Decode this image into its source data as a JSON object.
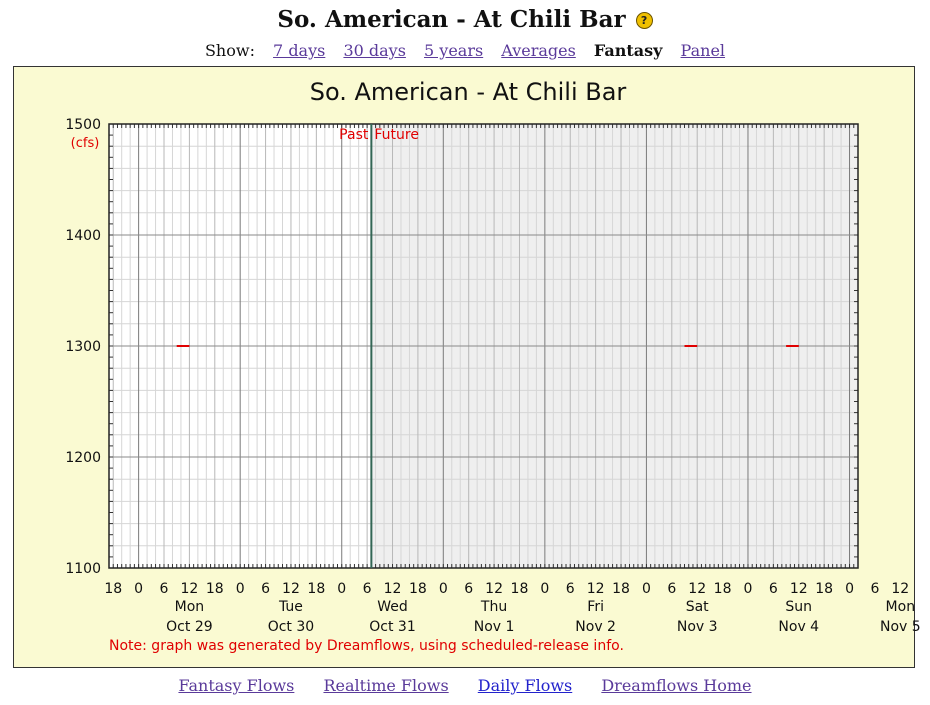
{
  "page": {
    "title": "So. American - At Chili Bar",
    "help_icon": "question-circle-icon"
  },
  "nav": {
    "show_label": "Show:",
    "items": [
      {
        "label": "7 days",
        "active": false
      },
      {
        "label": "30 days",
        "active": false
      },
      {
        "label": "5 years",
        "active": false
      },
      {
        "label": "Averages",
        "active": false
      },
      {
        "label": "Fantasy",
        "active": true
      },
      {
        "label": "Panel",
        "active": false
      }
    ]
  },
  "footer": {
    "links": [
      {
        "label": "Fantasy Flows"
      },
      {
        "label": "Realtime Flows"
      },
      {
        "label": "Daily Flows"
      },
      {
        "label": "Dreamflows Home"
      }
    ]
  },
  "colors": {
    "panel_bg": "#fafad2",
    "future_bg": "#efefef",
    "data_line": "#e00000",
    "now_line": "#336655",
    "annotation": "#e00000"
  },
  "chart_data": {
    "type": "line",
    "title": "So. American - At Chili Bar",
    "ylabel": "(cfs)",
    "ylim": [
      1100,
      1500
    ],
    "yticks": [
      1100,
      1200,
      1300,
      1400,
      1500
    ],
    "x_unit": "hours since Oct 29 00:00",
    "xlim": [
      -7,
      170
    ],
    "now_x": 55,
    "hour_ticks": [
      {
        "x": -6,
        "label": "18"
      },
      {
        "x": 0,
        "label": "0"
      },
      {
        "x": 6,
        "label": "6"
      },
      {
        "x": 12,
        "label": "12"
      },
      {
        "x": 18,
        "label": "18"
      },
      {
        "x": 24,
        "label": "0"
      },
      {
        "x": 30,
        "label": "6"
      },
      {
        "x": 36,
        "label": "12"
      },
      {
        "x": 42,
        "label": "18"
      },
      {
        "x": 48,
        "label": "0"
      },
      {
        "x": 54,
        "label": "6"
      },
      {
        "x": 60,
        "label": "12"
      },
      {
        "x": 66,
        "label": "18"
      },
      {
        "x": 72,
        "label": "0"
      },
      {
        "x": 78,
        "label": "6"
      },
      {
        "x": 84,
        "label": "12"
      },
      {
        "x": 90,
        "label": "18"
      },
      {
        "x": 96,
        "label": "0"
      },
      {
        "x": 102,
        "label": "6"
      },
      {
        "x": 108,
        "label": "12"
      },
      {
        "x": 114,
        "label": "18"
      },
      {
        "x": 120,
        "label": "0"
      },
      {
        "x": 126,
        "label": "6"
      },
      {
        "x": 132,
        "label": "12"
      },
      {
        "x": 138,
        "label": "18"
      },
      {
        "x": 144,
        "label": "0"
      },
      {
        "x": 150,
        "label": "6"
      },
      {
        "x": 156,
        "label": "12"
      },
      {
        "x": 162,
        "label": "18"
      },
      {
        "x": 168,
        "label": "0"
      },
      {
        "x": 174,
        "label": "6"
      },
      {
        "x": 180,
        "label": "12"
      }
    ],
    "days": [
      {
        "x": 12,
        "weekday": "Mon",
        "date": "Oct 29"
      },
      {
        "x": 36,
        "weekday": "Tue",
        "date": "Oct 30"
      },
      {
        "x": 60,
        "weekday": "Wed",
        "date": "Oct 31"
      },
      {
        "x": 84,
        "weekday": "Thu",
        "date": "Nov 1"
      },
      {
        "x": 108,
        "weekday": "Fri",
        "date": "Nov 2"
      },
      {
        "x": 132,
        "weekday": "Sat",
        "date": "Nov 3"
      },
      {
        "x": 156,
        "weekday": "Sun",
        "date": "Nov 4"
      },
      {
        "x": 180,
        "weekday": "Mon",
        "date": "Nov 5"
      }
    ],
    "series": [
      {
        "name": "",
        "segments": [
          {
            "x": [
              9,
              12
            ],
            "y": [
              1300,
              1300
            ]
          },
          {
            "x": [
              129,
              132
            ],
            "y": [
              1300,
              1300
            ]
          },
          {
            "x": [
              153,
              156
            ],
            "y": [
              1300,
              1300
            ]
          }
        ]
      }
    ],
    "annotations": {
      "past": "Past",
      "future": "Future",
      "note": "Note: graph was generated by Dreamflows, using scheduled-release info."
    },
    "grid": true
  }
}
